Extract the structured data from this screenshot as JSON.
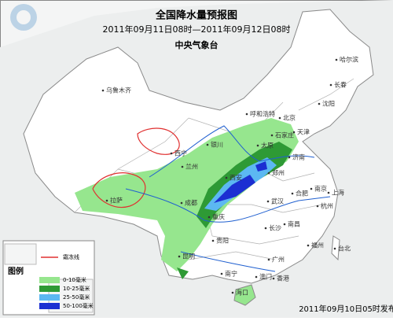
{
  "header": {
    "title": "全国降水量预报图",
    "subtitle": "2011年09月11日08时—2011年09月12日08时",
    "issuer": "中央气象台"
  },
  "legend": {
    "title": "图例",
    "items": [
      {
        "label": "霜冻线",
        "color": "#e03030"
      },
      {
        "label": "0-10毫米",
        "color": "#96e68e"
      },
      {
        "label": "10-25毫米",
        "color": "#2e9a35"
      },
      {
        "label": "25-50毫米",
        "color": "#5cb8f2"
      },
      {
        "label": "50-100毫米",
        "color": "#1c2fd2"
      }
    ]
  },
  "cities": [
    "乌鲁木齐",
    "拉萨",
    "西宁",
    "兰州",
    "银川",
    "呼和浩特",
    "北京",
    "天津",
    "石家庄",
    "太原",
    "济南",
    "郑州",
    "西安",
    "成都",
    "重庆",
    "武汉",
    "合肥",
    "南京",
    "上海",
    "杭州",
    "长沙",
    "南昌",
    "贵阳",
    "昆明",
    "南宁",
    "广州",
    "福州",
    "台北",
    "海口",
    "沈阳",
    "长春",
    "哈尔滨",
    "香港",
    "澳门"
  ],
  "footer": "2011年09月10日05时发布"
}
